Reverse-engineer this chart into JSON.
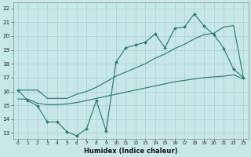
{
  "xlabel": "Humidex (Indice chaleur)",
  "xlim": [
    -0.5,
    23.5
  ],
  "ylim": [
    12.6,
    22.4
  ],
  "xtick_vals": [
    0,
    1,
    2,
    3,
    4,
    5,
    6,
    7,
    8,
    9,
    10,
    11,
    12,
    13,
    14,
    15,
    16,
    17,
    18,
    19,
    20,
    21,
    22,
    23
  ],
  "ytick_vals": [
    13,
    14,
    15,
    16,
    17,
    18,
    19,
    20,
    21,
    22
  ],
  "bg_color": "#c8e8e8",
  "grid_color": "#b0d8d8",
  "line_color": "#2e7d6e",
  "line1_x": [
    0,
    1,
    2,
    3,
    4,
    5,
    6,
    7,
    8,
    9,
    10,
    11,
    12,
    13,
    14,
    15,
    16,
    17,
    18,
    19,
    20,
    21,
    22,
    23
  ],
  "line1_y": [
    16.1,
    15.35,
    14.95,
    13.8,
    13.8,
    13.1,
    12.8,
    13.3,
    15.35,
    13.15,
    18.1,
    19.15,
    19.35,
    19.55,
    20.15,
    19.15,
    20.55,
    20.65,
    21.6,
    20.7,
    20.1,
    19.1,
    17.6,
    17.0
  ],
  "line2_x": [
    0,
    1,
    2,
    3,
    4,
    5,
    6,
    7,
    8,
    9,
    10,
    11,
    12,
    13,
    14,
    15,
    16,
    17,
    18,
    19,
    20,
    21,
    22,
    23
  ],
  "line2_y": [
    16.1,
    16.1,
    16.1,
    15.5,
    15.5,
    15.5,
    15.8,
    16.0,
    16.3,
    16.7,
    17.1,
    17.4,
    17.7,
    18.0,
    18.4,
    18.7,
    19.1,
    19.4,
    19.8,
    20.1,
    20.2,
    20.65,
    20.75,
    17.0
  ],
  "line3_x": [
    0,
    1,
    2,
    3,
    4,
    5,
    6,
    7,
    8,
    9,
    10,
    11,
    12,
    13,
    14,
    15,
    16,
    17,
    18,
    19,
    20,
    21,
    22,
    23
  ],
  "line3_y": [
    15.45,
    15.45,
    15.15,
    15.05,
    15.05,
    15.1,
    15.2,
    15.35,
    15.5,
    15.65,
    15.8,
    15.95,
    16.1,
    16.25,
    16.4,
    16.55,
    16.7,
    16.8,
    16.9,
    17.0,
    17.05,
    17.1,
    17.2,
    16.9
  ]
}
